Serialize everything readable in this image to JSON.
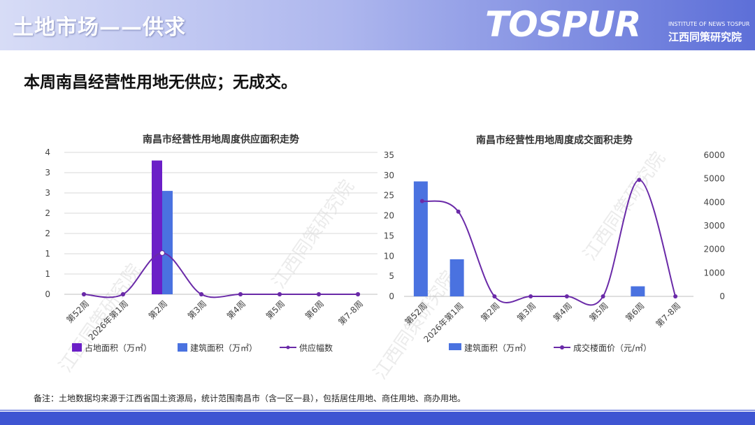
{
  "header": {
    "title": "土地市场——供求",
    "logo_text": "TOSPUR",
    "logo_sub_en": "INSTITUTE OF NEWS TOSPUR",
    "logo_sub_cn": "江西同策研究院"
  },
  "headline": "本周南昌经营性用地无供应；无成交。",
  "note": "备注：土地数据均来源于江西省国土资源局，统计范围南昌市（含一区一县），包括居住用地、商住用地、商办用地。",
  "watermark": "江西同策研究院",
  "colors": {
    "purple": "#6b1fc7",
    "blue": "#4a72e0",
    "line": "#6a2aa8",
    "grid": "#d9d9d9",
    "header_accent": "#5d6fd8"
  },
  "chart_data": [
    {
      "type": "bar",
      "title": "南昌市经营性用地周度供应面积走势",
      "categories": [
        "第52周",
        "2026年第1周",
        "第2周",
        "第3周",
        "第4周",
        "第5周",
        "第6周",
        "第7-8周"
      ],
      "y_ticks": [
        "0",
        "1",
        "1",
        "2",
        "2",
        "3",
        "3",
        "4"
      ],
      "ylim": [
        0,
        3.5
      ],
      "grid": true,
      "legend_position": "bottom",
      "series": [
        {
          "name": "占地面积（万㎡）",
          "kind": "bar",
          "values": [
            0,
            0,
            3.3,
            0,
            0,
            0,
            0,
            0
          ]
        },
        {
          "name": "建筑面积（万㎡）",
          "kind": "bar",
          "values": [
            0,
            0,
            2.55,
            0,
            0,
            0,
            0,
            0
          ]
        },
        {
          "name": "供应幅数",
          "kind": "line",
          "values": [
            0,
            0,
            1,
            0,
            0,
            0,
            0,
            0
          ],
          "line_max": 1.85
        }
      ]
    },
    {
      "type": "bar",
      "title": "南昌市经营性用地周度成交面积走势",
      "categories": [
        "第52周",
        "2026年第1周",
        "第2周",
        "第3周",
        "第4周",
        "第5周",
        "第6周",
        "第7-8周"
      ],
      "y_left_ticks": [
        "0",
        "5",
        "10",
        "15",
        "20",
        "25",
        "30",
        "35"
      ],
      "y_right_ticks": [
        "0",
        "1000",
        "2000",
        "3000",
        "4000",
        "5000",
        "6000"
      ],
      "ylim_left": [
        0,
        35
      ],
      "ylim_right": [
        0,
        6000
      ],
      "grid": false,
      "legend_position": "bottom",
      "series": [
        {
          "name": "建筑面积（万㎡）",
          "kind": "bar",
          "axis": "left",
          "values": [
            28.5,
            9.2,
            0,
            0,
            0,
            0,
            2.5,
            0
          ]
        },
        {
          "name": "成交楼面价（元/㎡）",
          "kind": "line",
          "axis": "right",
          "values": [
            4050,
            3600,
            0,
            0,
            0,
            0,
            4950,
            0
          ]
        }
      ]
    }
  ]
}
